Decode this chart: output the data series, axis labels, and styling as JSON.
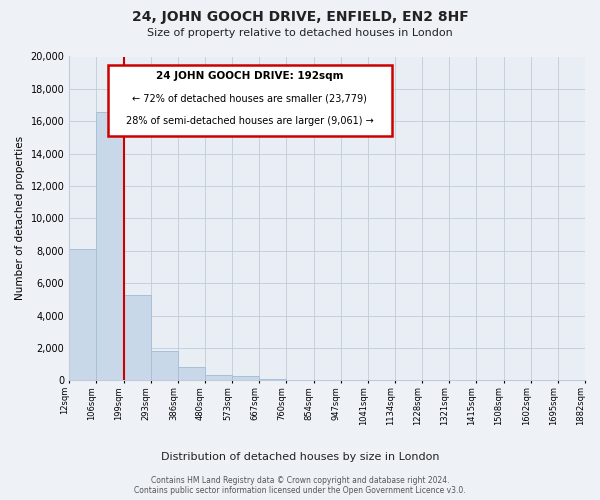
{
  "title": "24, JOHN GOOCH DRIVE, ENFIELD, EN2 8HF",
  "subtitle": "Size of property relative to detached houses in London",
  "xlabel": "Distribution of detached houses by size in London",
  "ylabel": "Number of detached properties",
  "bar_values": [
    8100,
    16600,
    5300,
    1800,
    800,
    310,
    250,
    100,
    0,
    0,
    0,
    0,
    0,
    0,
    0,
    0,
    0,
    0,
    0
  ],
  "tick_labels": [
    "12sqm",
    "106sqm",
    "199sqm",
    "293sqm",
    "386sqm",
    "480sqm",
    "573sqm",
    "667sqm",
    "760sqm",
    "854sqm",
    "947sqm",
    "1041sqm",
    "1134sqm",
    "1228sqm",
    "1321sqm",
    "1415sqm",
    "1508sqm",
    "1602sqm",
    "1695sqm",
    "1882sqm"
  ],
  "bar_color": "#c8d8e8",
  "bar_edge_color": "#a8c0d8",
  "marker_color": "#cc0000",
  "marker_bin_index": 2,
  "ylim": [
    0,
    20000
  ],
  "yticks": [
    0,
    2000,
    4000,
    6000,
    8000,
    10000,
    12000,
    14000,
    16000,
    18000,
    20000
  ],
  "annotation_title": "24 JOHN GOOCH DRIVE: 192sqm",
  "annotation_line1": "← 72% of detached houses are smaller (23,779)",
  "annotation_line2": "28% of semi-detached houses are larger (9,061) →",
  "footer_line1": "Contains HM Land Registry data © Crown copyright and database right 2024.",
  "footer_line2": "Contains public sector information licensed under the Open Government Licence v3.0.",
  "bg_color": "#eef2f7",
  "plot_bg_color": "#e8eef4",
  "grid_color": "#c0ccd8"
}
